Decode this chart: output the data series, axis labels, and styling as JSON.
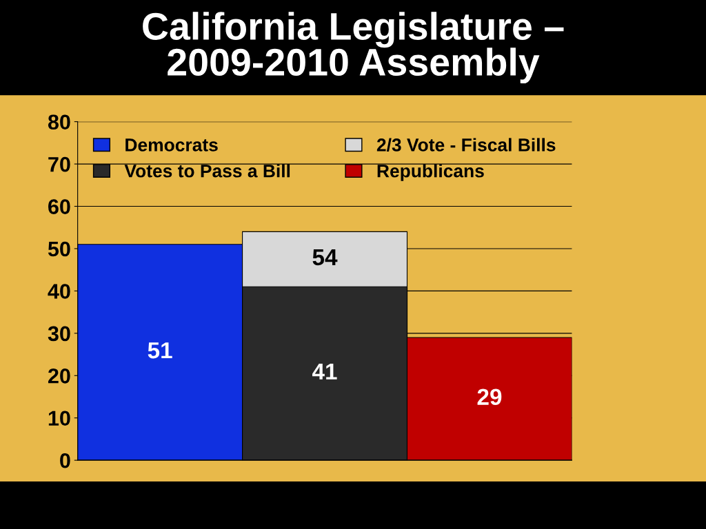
{
  "chart_data": {
    "type": "bar",
    "title": "California Legislature –\n2009-2010 Assembly",
    "categories": [
      null,
      null,
      null
    ],
    "series": [
      {
        "name": "Democrats",
        "color": "#1030e0",
        "values": [
          51,
          null,
          null
        ]
      },
      {
        "name": "2/3 Vote - Fiscal Bills",
        "color": "#d8d8d8",
        "values": [
          null,
          54,
          null
        ]
      },
      {
        "name": "Votes to Pass a Bill",
        "color": "#2a2a2a",
        "values": [
          null,
          41,
          null
        ]
      },
      {
        "name": "Republicans",
        "color": "#c00000",
        "values": [
          null,
          null,
          29
        ]
      }
    ],
    "ylim": [
      0,
      80
    ],
    "yticks": [
      0,
      10,
      20,
      30,
      40,
      50,
      60,
      70,
      80
    ],
    "grid": "y",
    "legend": "top",
    "data_labels": true
  }
}
